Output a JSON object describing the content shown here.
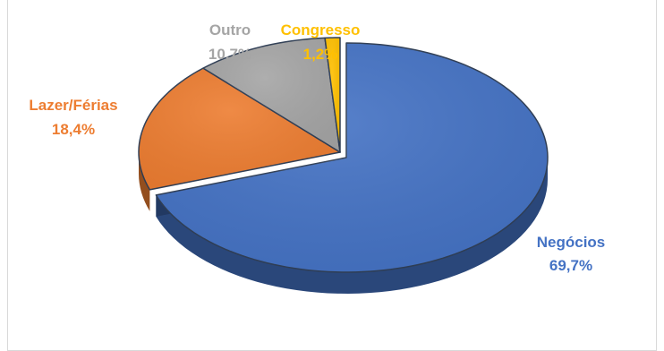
{
  "chart_data": {
    "type": "pie",
    "title": "",
    "categories": [
      "Negócios",
      "Lazer/Férias",
      "Outro",
      "Congresso"
    ],
    "values": [
      69.7,
      18.4,
      10.7,
      1.2
    ],
    "value_labels": [
      "69,7%",
      "18,4%",
      "10,7%",
      "1,2%"
    ],
    "colors": [
      "#4472c4",
      "#ed7d31",
      "#a5a5a5",
      "#ffc000"
    ],
    "label_colors": [
      "#4472c4",
      "#ed7d31",
      "#a5a5a5",
      "#ffc000"
    ],
    "style": "3d",
    "legend": "none",
    "labels_outside": true,
    "start_angle": 0,
    "direction": "clockwise"
  }
}
